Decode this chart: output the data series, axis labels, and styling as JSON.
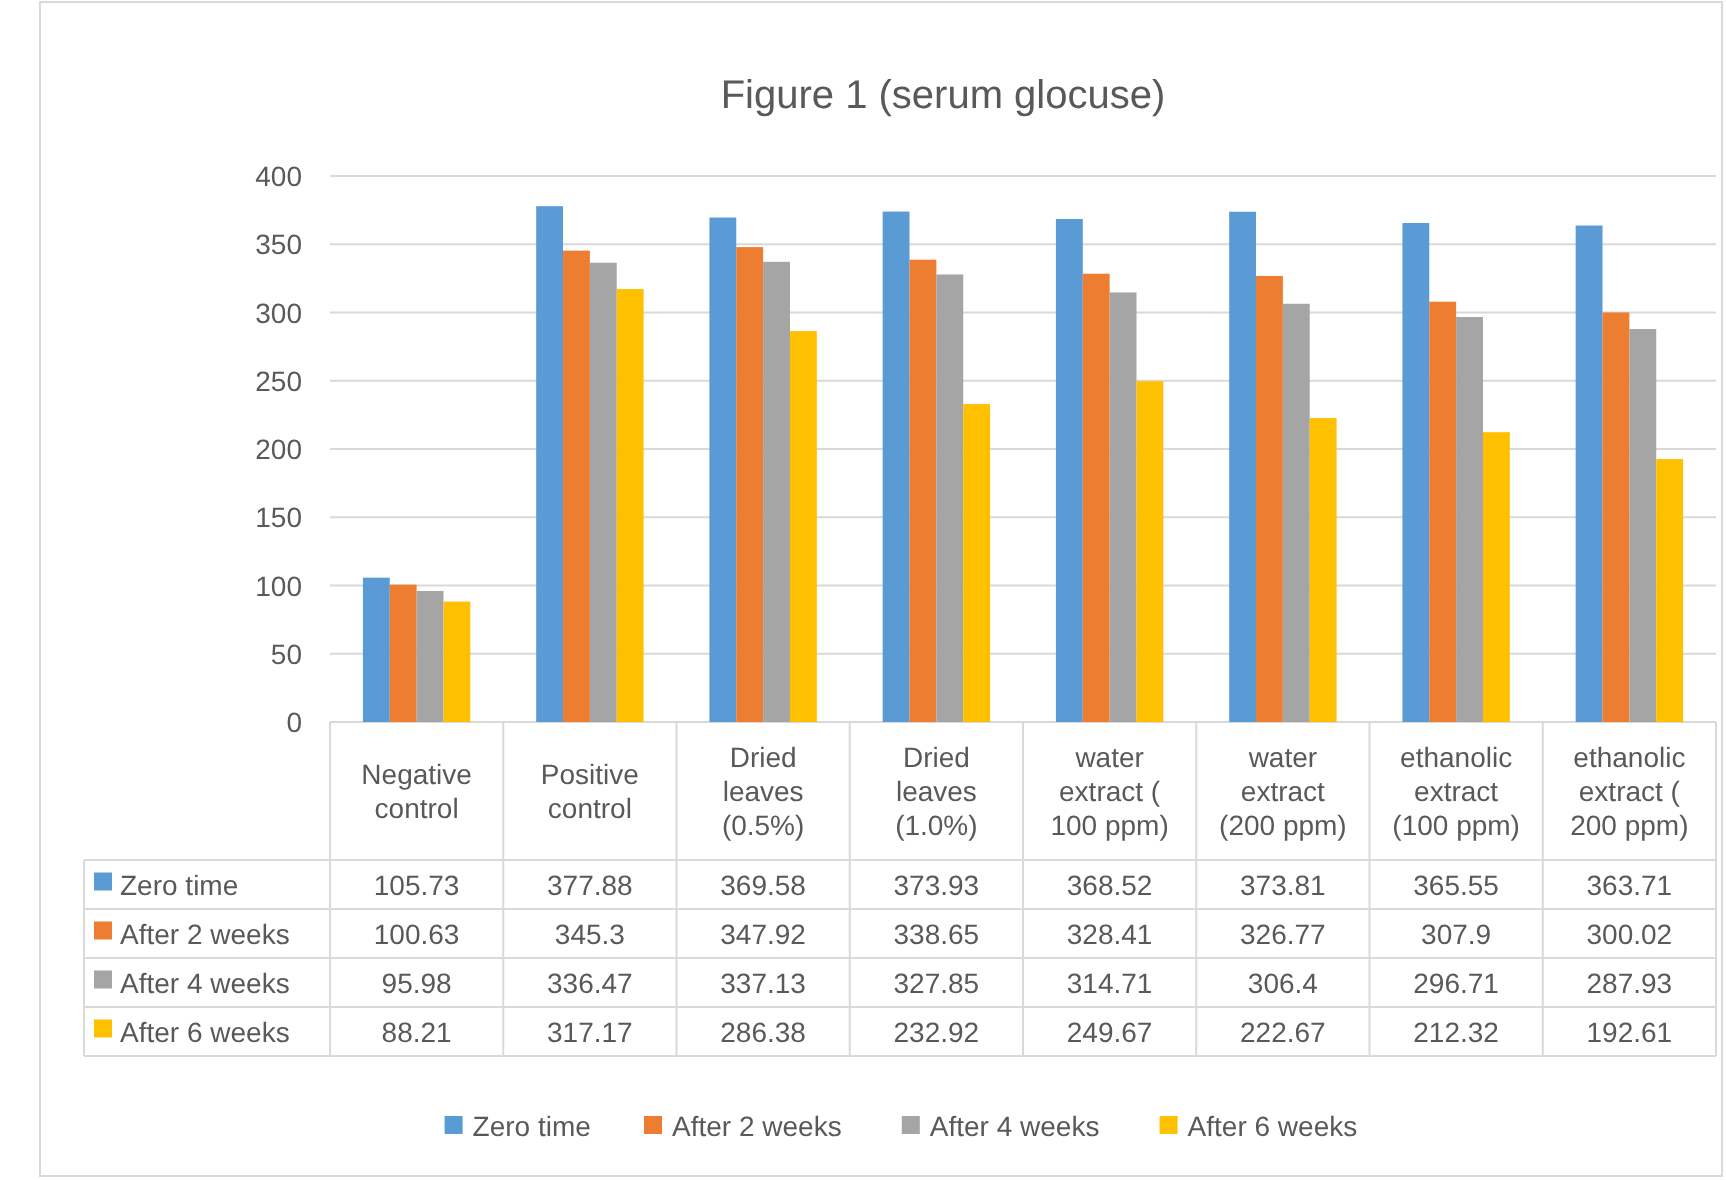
{
  "chart_data": {
    "type": "bar",
    "title": "Figure 1 (serum glocuse)",
    "categories": [
      "Negative control",
      "Positive control",
      "Dried leaves (0.5%)",
      "Dried leaves (1.0%)",
      "water extract ( 100 ppm)",
      "water extract (200 ppm)",
      "ethanolic extract (100 ppm)",
      "ethanolic extract ( 200 ppm)"
    ],
    "series": [
      {
        "name": "Zero time",
        "color": "#5b9bd5",
        "values": [
          105.73,
          377.88,
          369.58,
          373.93,
          368.52,
          373.81,
          365.55,
          363.71
        ]
      },
      {
        "name": "After 2 weeks",
        "color": "#ed7d31",
        "values": [
          100.63,
          345.3,
          347.92,
          338.65,
          328.41,
          326.77,
          307.9,
          300.02
        ]
      },
      {
        "name": "After 4 weeks",
        "color": "#a5a5a5",
        "values": [
          95.98,
          336.47,
          337.13,
          327.85,
          314.71,
          306.4,
          296.71,
          287.93
        ]
      },
      {
        "name": "After 6 weeks",
        "color": "#ffc000",
        "values": [
          88.21,
          317.17,
          286.38,
          232.92,
          249.67,
          222.67,
          212.32,
          192.61
        ]
      }
    ],
    "ylim": [
      0,
      400
    ],
    "yticks": [
      0,
      50,
      100,
      150,
      200,
      250,
      300,
      350,
      400
    ],
    "grid": "y",
    "legend": "bottom",
    "data_labels": true
  }
}
